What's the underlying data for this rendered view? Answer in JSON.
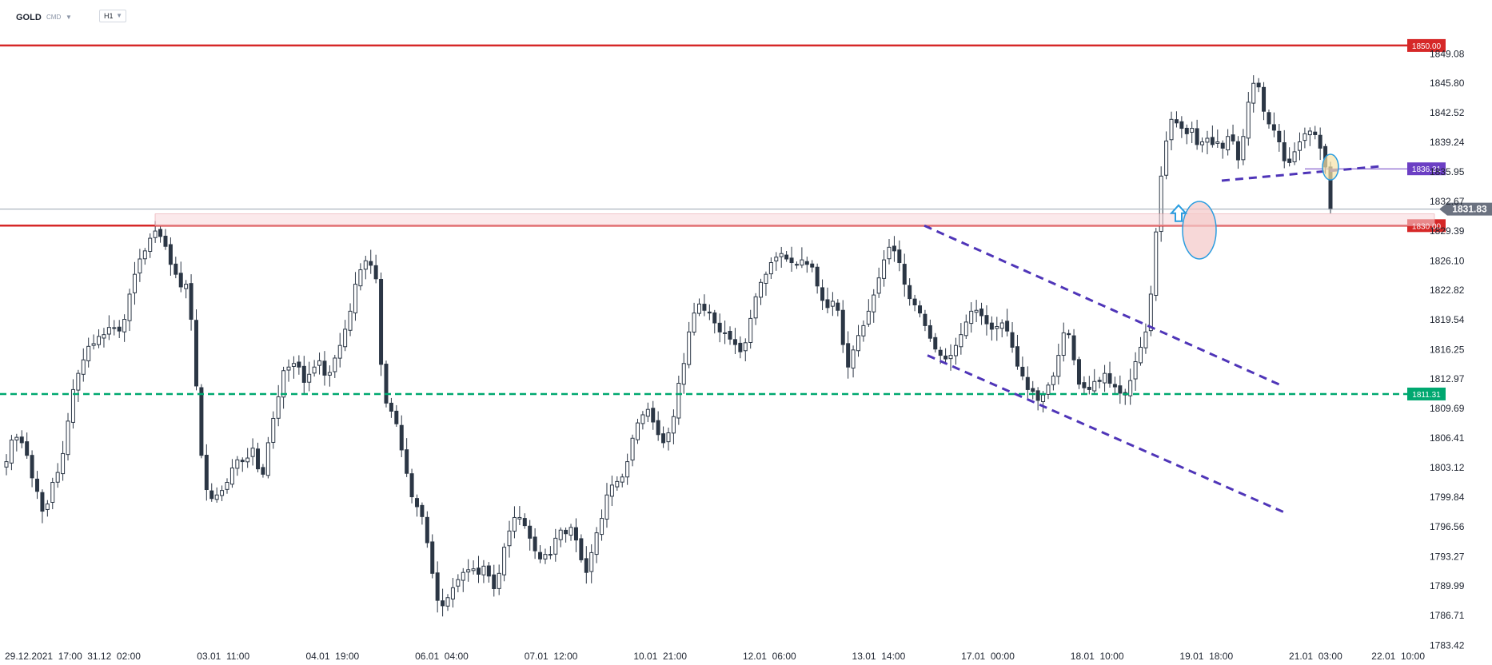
{
  "header": {
    "symbol": "GOLD",
    "market": "CMD",
    "timeframe": "H1"
  },
  "icons": {
    "market_dropdown": "chevron-down-icon",
    "timeframe_dropdown": "chevron-down-icon",
    "breakout_marker": "arrow-up-icon"
  },
  "chart_data": {
    "type": "candlestick",
    "ylim": [
      1783.0,
      1851.5
    ],
    "y_ticks": [
      "1849.08",
      "1845.80",
      "1842.52",
      "1839.24",
      "1835.95",
      "1832.67",
      "1829.39",
      "1826.10",
      "1822.82",
      "1819.54",
      "1816.25",
      "1812.97",
      "1809.69",
      "1806.41",
      "1803.12",
      "1799.84",
      "1796.56",
      "1793.27",
      "1789.99",
      "1786.71",
      "1783.42"
    ],
    "x_ticks": [
      "29.12.2021  17:00",
      "31.12  02:00",
      "03.01  11:00",
      "04.01  19:00",
      "06.01  04:00",
      "07.01  12:00",
      "10.01  21:00",
      "12.01  06:00",
      "13.01  14:00",
      "17.01  00:00",
      "18.01  10:00",
      "19.01  18:00",
      "21.01  03:00",
      "22.01  10:00"
    ],
    "current_price": {
      "value": 1831.83,
      "label": "1831.83",
      "color": "#6b7280"
    },
    "levels": [
      {
        "value": 1850.0,
        "label": "1850.00",
        "color": "#d62828",
        "style": "solid"
      },
      {
        "value": 1830.0,
        "label": "1830.00",
        "color": "#d62828",
        "style": "solid"
      },
      {
        "value": 1811.31,
        "label": "1811.31",
        "color": "#00a870",
        "style": "dashed"
      }
    ],
    "marker_level": {
      "value": 1836.31,
      "label": "1836.31",
      "color": "#6c3fc4"
    },
    "series_close": [
      1803.8,
      1806.2,
      1806.5,
      1805.9,
      1804.5,
      1802.0,
      1800.5,
      1798.3,
      1799.1,
      1801.5,
      1802.6,
      1804.7,
      1808.3,
      1811.8,
      1813.6,
      1815.1,
      1816.6,
      1816.9,
      1817.7,
      1817.9,
      1818.7,
      1818.6,
      1818.3,
      1819.6,
      1822.4,
      1824.6,
      1826.3,
      1827.2,
      1828.6,
      1829.4,
      1828.8,
      1827.7,
      1825.7,
      1824.6,
      1823.2,
      1823.5,
      1819.6,
      1812.2,
      1804.5,
      1800.7,
      1799.7,
      1800.1,
      1800.6,
      1801.5,
      1803.1,
      1804.0,
      1803.8,
      1804.2,
      1805.3,
      1803.0,
      1802.4,
      1805.9,
      1808.6,
      1811.0,
      1813.9,
      1814.3,
      1814.7,
      1814.3,
      1812.6,
      1813.5,
      1814.3,
      1815.0,
      1813.4,
      1813.7,
      1815.3,
      1816.7,
      1818.5,
      1820.5,
      1823.5,
      1825.1,
      1826.1,
      1825.6,
      1824.1,
      1814.6,
      1810.3,
      1809.4,
      1808.0,
      1805.1,
      1802.5,
      1799.9,
      1798.8,
      1797.7,
      1794.8,
      1791.4,
      1788.4,
      1787.8,
      1788.7,
      1789.8,
      1790.7,
      1791.5,
      1791.8,
      1791.9,
      1791.3,
      1792.2,
      1791.1,
      1789.7,
      1791.4,
      1794.3,
      1796.1,
      1797.6,
      1797.6,
      1796.7,
      1795.3,
      1793.9,
      1793.0,
      1793.5,
      1793.5,
      1795.3,
      1796.2,
      1795.8,
      1796.5,
      1795.1,
      1792.9,
      1791.5,
      1793.7,
      1795.9,
      1797.5,
      1800.1,
      1801.2,
      1801.6,
      1802.1,
      1803.8,
      1806.4,
      1808.1,
      1809.0,
      1809.6,
      1808.2,
      1806.8,
      1805.9,
      1807.0,
      1808.8,
      1812.5,
      1814.7,
      1818.2,
      1820.3,
      1821.3,
      1820.6,
      1820.3,
      1819.2,
      1818.2,
      1818.1,
      1817.4,
      1816.8,
      1816.0,
      1817.0,
      1819.7,
      1822.1,
      1823.7,
      1824.6,
      1825.9,
      1826.5,
      1826.9,
      1826.3,
      1825.9,
      1825.7,
      1826.2,
      1825.7,
      1825.4,
      1823.3,
      1821.7,
      1820.9,
      1821.6,
      1820.6,
      1816.8,
      1814.3,
      1816.2,
      1817.8,
      1818.9,
      1820.5,
      1822.3,
      1824.2,
      1826.2,
      1827.6,
      1827.2,
      1825.9,
      1823.5,
      1821.9,
      1821.2,
      1820.3,
      1818.9,
      1817.5,
      1816.3,
      1815.6,
      1815.2,
      1815.6,
      1816.7,
      1817.9,
      1819.3,
      1820.5,
      1820.6,
      1820.0,
      1819.1,
      1818.5,
      1818.8,
      1819.2,
      1818.3,
      1816.5,
      1814.4,
      1813.3,
      1811.8,
      1811.6,
      1810.6,
      1811.2,
      1812.3,
      1813.3,
      1815.6,
      1818.1,
      1817.9,
      1815.1,
      1812.4,
      1812.0,
      1811.8,
      1812.7,
      1812.7,
      1813.6,
      1812.5,
      1812.1,
      1811.4,
      1811.2,
      1812.8,
      1814.9,
      1816.5,
      1818.2,
      1822.4,
      1829.3,
      1835.5,
      1839.4,
      1841.8,
      1841.4,
      1840.8,
      1840.2,
      1840.8,
      1839.0,
      1839.3,
      1839.7,
      1839.0,
      1839.3,
      1838.6,
      1839.9,
      1839.4,
      1837.3,
      1839.9,
      1843.7,
      1845.8,
      1845.4,
      1842.7,
      1841.3,
      1840.6,
      1839.3,
      1837.2,
      1837.0,
      1838.2,
      1839.3,
      1840.2,
      1840.5,
      1840.1,
      1838.6,
      1836.5,
      1831.83
    ]
  }
}
